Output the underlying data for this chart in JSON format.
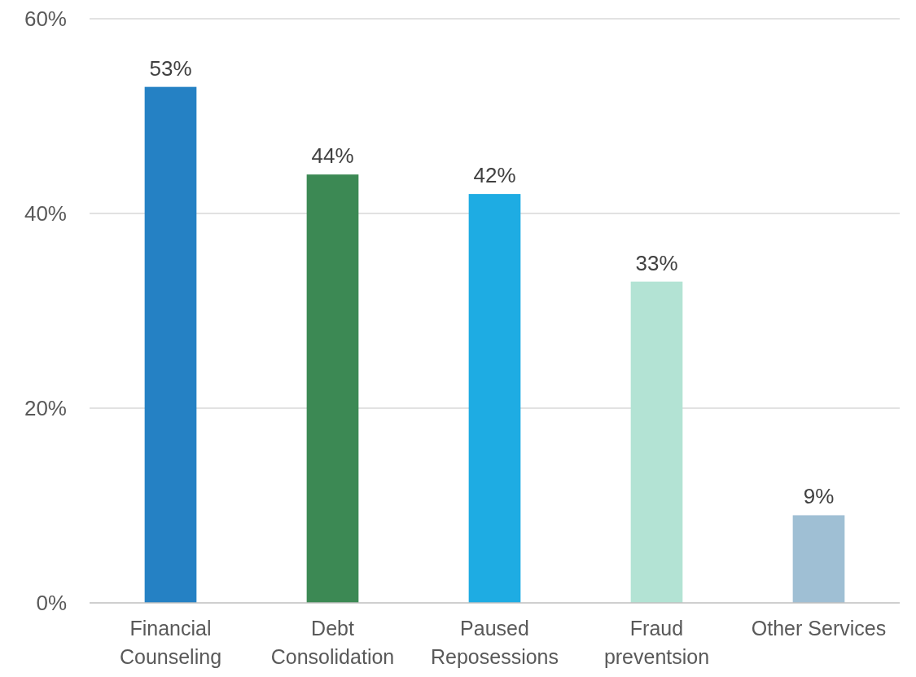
{
  "chart_data": {
    "type": "bar",
    "categories": [
      "Financial Counseling",
      "Debt Consolidation",
      "Paused Reposessions",
      "Fraud preventsion",
      "Other Services"
    ],
    "values": [
      53,
      44,
      42,
      33,
      9
    ],
    "colors": [
      "#2581c4",
      "#3c8954",
      "#1eace3",
      "#b3e3d4",
      "#9fbfd4"
    ],
    "value_labels": [
      "53%",
      "44%",
      "42%",
      "33%",
      "9%"
    ],
    "ylim": [
      0,
      60
    ],
    "yticks": [
      {
        "value": 0,
        "label": "0%"
      },
      {
        "value": 20,
        "label": "20%"
      },
      {
        "value": 40,
        "label": "40%"
      },
      {
        "value": 60,
        "label": "60%"
      }
    ],
    "grid": "y"
  }
}
